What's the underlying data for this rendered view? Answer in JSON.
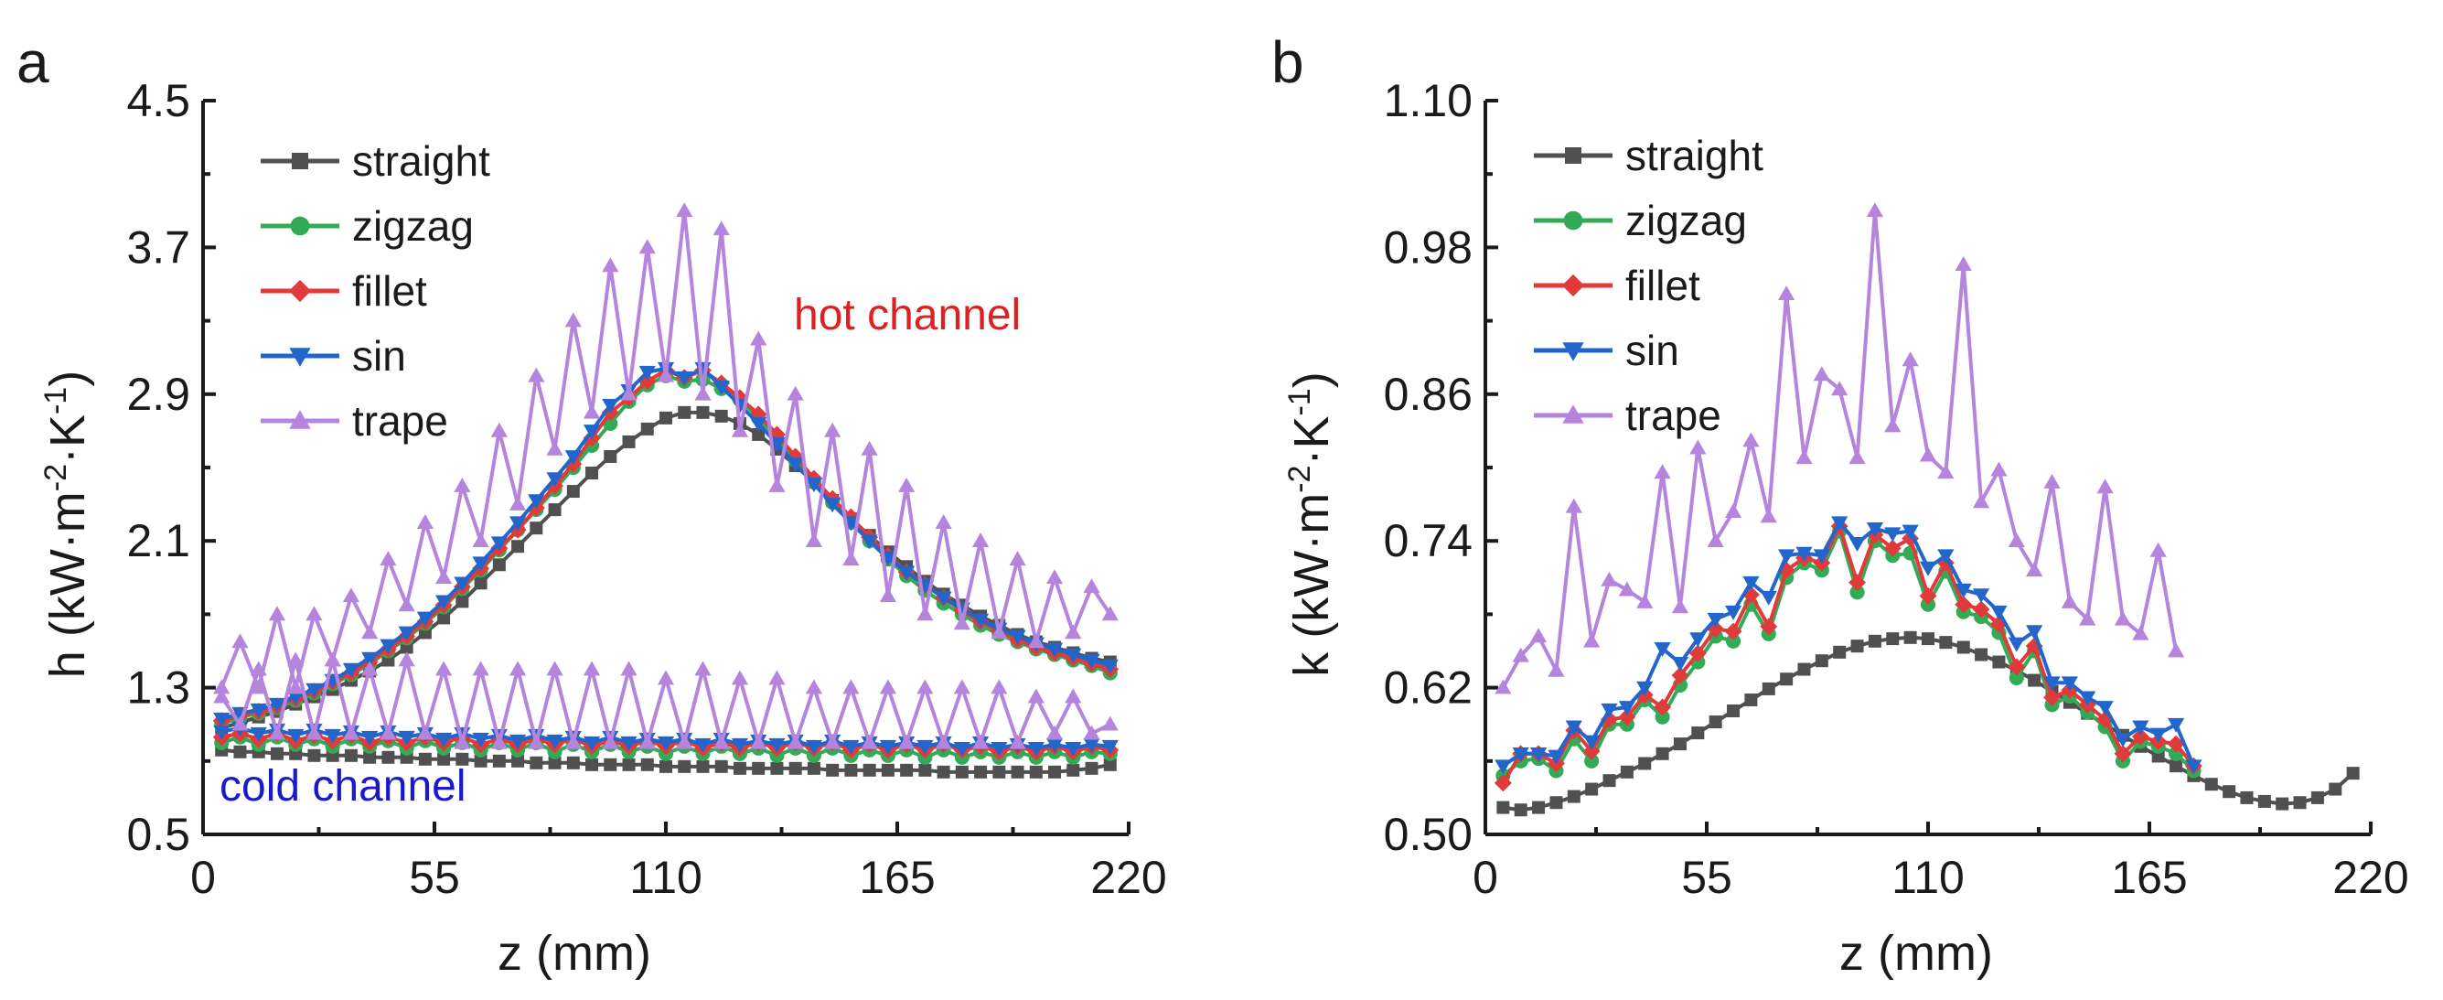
{
  "chart_data": [
    {
      "panel": "a",
      "type": "line",
      "xlabel": "z (mm)",
      "ylabel": "h (kW·m⁻²·K⁻¹)",
      "ylabel_parts": {
        "base": "h (kW·m",
        "e1": "-2",
        "mid": "·K",
        "e2": "-1",
        "end": ")"
      },
      "xlim": [
        0,
        220
      ],
      "ylim": [
        0.5,
        4.5
      ],
      "xticks": [
        0,
        55,
        110,
        165,
        220
      ],
      "yticks": [
        0.5,
        1.3,
        2.1,
        2.9,
        3.7,
        4.5
      ],
      "ytick_labels": [
        "0.5",
        "1.3",
        "2.1",
        "2.9",
        "3.7",
        "4.5"
      ],
      "legend": [
        "straight",
        "zigzag",
        "fillet",
        "sin",
        "trape"
      ],
      "legend_position": "top-left",
      "annotations": [
        {
          "text": "hot channel",
          "color": "#e02020"
        },
        {
          "text": "cold channel",
          "color": "#1a1acc"
        }
      ],
      "x_start": 4.4,
      "x_step": 4.4,
      "series": [
        {
          "name": "straight",
          "group": "hot",
          "color": "#505050",
          "marker": "square",
          "values": [
            1.08,
            1.11,
            1.14,
            1.17,
            1.21,
            1.25,
            1.29,
            1.34,
            1.39,
            1.45,
            1.52,
            1.6,
            1.68,
            1.77,
            1.87,
            1.97,
            2.07,
            2.17,
            2.27,
            2.37,
            2.47,
            2.56,
            2.64,
            2.71,
            2.77,
            2.8,
            2.8,
            2.78,
            2.74,
            2.68,
            2.6,
            2.51,
            2.42,
            2.32,
            2.22,
            2.13,
            2.04,
            1.96,
            1.88,
            1.81,
            1.75,
            1.69,
            1.64,
            1.59,
            1.55,
            1.52,
            1.49,
            1.46,
            1.44
          ]
        },
        {
          "name": "zigzag",
          "group": "hot",
          "color": "#33aa55",
          "marker": "circle",
          "values": [
            1.1,
            1.14,
            1.16,
            1.19,
            1.23,
            1.27,
            1.32,
            1.37,
            1.43,
            1.5,
            1.57,
            1.65,
            1.74,
            1.84,
            1.94,
            2.05,
            2.16,
            2.27,
            2.38,
            2.5,
            2.62,
            2.74,
            2.86,
            2.95,
            3.0,
            2.97,
            2.98,
            2.93,
            2.87,
            2.77,
            2.66,
            2.54,
            2.42,
            2.31,
            2.2,
            2.1,
            2.0,
            1.91,
            1.83,
            1.76,
            1.7,
            1.64,
            1.59,
            1.55,
            1.51,
            1.48,
            1.45,
            1.42,
            1.38
          ]
        },
        {
          "name": "fillet",
          "group": "hot",
          "color": "#e03a3a",
          "marker": "diamond",
          "values": [
            1.12,
            1.15,
            1.17,
            1.2,
            1.24,
            1.28,
            1.33,
            1.38,
            1.44,
            1.51,
            1.58,
            1.66,
            1.75,
            1.85,
            1.95,
            2.06,
            2.16,
            2.28,
            2.4,
            2.52,
            2.66,
            2.8,
            2.88,
            2.97,
            3.03,
            2.99,
            3.03,
            2.96,
            2.88,
            2.79,
            2.68,
            2.56,
            2.44,
            2.33,
            2.23,
            2.12,
            2.02,
            1.93,
            1.86,
            1.79,
            1.72,
            1.66,
            1.61,
            1.56,
            1.52,
            1.49,
            1.46,
            1.43,
            1.4
          ]
        },
        {
          "name": "sin",
          "group": "hot",
          "color": "#2266cc",
          "marker": "triangle-down",
          "values": [
            1.13,
            1.16,
            1.18,
            1.21,
            1.25,
            1.29,
            1.34,
            1.4,
            1.46,
            1.53,
            1.6,
            1.68,
            1.77,
            1.87,
            1.98,
            2.09,
            2.2,
            2.32,
            2.44,
            2.56,
            2.7,
            2.84,
            2.92,
            3.02,
            3.04,
            2.99,
            3.04,
            2.94,
            2.84,
            2.74,
            2.63,
            2.52,
            2.41,
            2.3,
            2.2,
            2.1,
            2.01,
            1.93,
            1.86,
            1.79,
            1.73,
            1.67,
            1.62,
            1.58,
            1.54,
            1.51,
            1.48,
            1.45,
            1.42
          ]
        },
        {
          "name": "trape",
          "group": "hot",
          "color": "#b584dd",
          "marker": "triangle-up",
          "values": [
            1.3,
            1.55,
            1.3,
            1.7,
            1.3,
            1.7,
            1.45,
            1.8,
            1.6,
            2.0,
            1.75,
            2.2,
            1.9,
            2.4,
            2.1,
            2.7,
            2.3,
            3.0,
            2.6,
            3.3,
            2.8,
            3.6,
            2.9,
            3.7,
            3.0,
            3.9,
            2.9,
            3.8,
            2.7,
            3.2,
            2.4,
            2.9,
            2.1,
            2.7,
            2.0,
            2.6,
            1.8,
            2.4,
            1.7,
            2.2,
            1.65,
            2.1,
            1.6,
            2.0,
            1.55,
            1.9,
            1.6,
            1.85,
            1.7
          ]
        },
        {
          "name": "straight",
          "group": "cold",
          "color": "#505050",
          "marker": "square",
          "values": [
            0.96,
            0.95,
            0.95,
            0.94,
            0.94,
            0.93,
            0.93,
            0.93,
            0.92,
            0.92,
            0.92,
            0.91,
            0.91,
            0.91,
            0.9,
            0.9,
            0.9,
            0.89,
            0.89,
            0.89,
            0.88,
            0.88,
            0.88,
            0.88,
            0.87,
            0.87,
            0.87,
            0.87,
            0.86,
            0.86,
            0.86,
            0.86,
            0.86,
            0.85,
            0.85,
            0.85,
            0.85,
            0.85,
            0.85,
            0.84,
            0.84,
            0.84,
            0.84,
            0.84,
            0.84,
            0.84,
            0.85,
            0.86,
            0.88
          ]
        },
        {
          "name": "zigzag",
          "group": "cold",
          "color": "#33aa55",
          "marker": "circle",
          "values": [
            1.0,
            1.03,
            0.99,
            1.03,
            0.99,
            1.02,
            0.98,
            1.02,
            0.98,
            1.01,
            0.97,
            1.01,
            0.97,
            1.0,
            0.96,
            1.0,
            0.96,
            1.0,
            0.95,
            0.99,
            0.95,
            0.99,
            0.95,
            0.98,
            0.94,
            0.98,
            0.94,
            0.98,
            0.94,
            0.97,
            0.93,
            0.97,
            0.93,
            0.97,
            0.93,
            0.96,
            0.93,
            0.96,
            0.92,
            0.96,
            0.92,
            0.95,
            0.92,
            0.95,
            0.92,
            0.95,
            0.92,
            0.95,
            0.94
          ]
        },
        {
          "name": "fillet",
          "group": "cold",
          "color": "#e03a3a",
          "marker": "diamond",
          "values": [
            1.03,
            1.05,
            1.02,
            1.05,
            1.01,
            1.04,
            1.01,
            1.04,
            1.0,
            1.03,
            1.0,
            1.03,
            1.0,
            1.03,
            0.99,
            1.02,
            0.99,
            1.02,
            0.99,
            1.02,
            0.98,
            1.01,
            0.98,
            1.01,
            0.98,
            1.01,
            0.97,
            1.0,
            0.97,
            1.0,
            0.97,
            1.0,
            0.97,
            1.0,
            0.96,
            0.99,
            0.96,
            0.99,
            0.96,
            0.99,
            0.96,
            0.98,
            0.95,
            0.98,
            0.95,
            0.98,
            0.95,
            0.98,
            0.96
          ]
        },
        {
          "name": "sin",
          "group": "cold",
          "color": "#2266cc",
          "marker": "triangle-down",
          "values": [
            1.06,
            1.08,
            1.05,
            1.07,
            1.04,
            1.07,
            1.04,
            1.06,
            1.03,
            1.06,
            1.03,
            1.05,
            1.02,
            1.05,
            1.02,
            1.04,
            1.01,
            1.04,
            1.01,
            1.03,
            1.0,
            1.03,
            1.0,
            1.02,
            1.0,
            1.02,
            0.99,
            1.02,
            0.99,
            1.01,
            0.99,
            1.01,
            0.98,
            1.01,
            0.98,
            1.0,
            0.98,
            1.0,
            0.98,
            1.0,
            0.97,
            1.0,
            0.97,
            0.99,
            0.97,
            0.99,
            0.97,
            0.99,
            0.98
          ]
        },
        {
          "name": "trape",
          "group": "cold",
          "color": "#b584dd",
          "marker": "triangle-up",
          "values": [
            1.25,
            1.1,
            1.4,
            1.05,
            1.45,
            1.05,
            1.45,
            1.05,
            1.4,
            1.05,
            1.45,
            1.05,
            1.4,
            1.0,
            1.4,
            1.0,
            1.4,
            1.0,
            1.4,
            1.0,
            1.4,
            1.0,
            1.4,
            1.0,
            1.35,
            1.0,
            1.4,
            1.0,
            1.35,
            1.0,
            1.35,
            1.0,
            1.3,
            1.0,
            1.3,
            1.0,
            1.3,
            1.0,
            1.3,
            1.0,
            1.3,
            1.0,
            1.3,
            1.0,
            1.25,
            1.05,
            1.25,
            1.05,
            1.1
          ]
        }
      ]
    },
    {
      "panel": "b",
      "type": "line",
      "xlabel": "z (mm)",
      "ylabel": "k (kW·m⁻²·K⁻¹)",
      "ylabel_parts": {
        "base": "k (kW·m",
        "e1": "-2",
        "mid": "·K",
        "e2": "-1",
        "end": ")"
      },
      "xlim": [
        0,
        220
      ],
      "ylim": [
        0.5,
        1.1
      ],
      "xticks": [
        0,
        55,
        110,
        165,
        220
      ],
      "yticks": [
        0.5,
        0.62,
        0.74,
        0.86,
        0.98,
        1.1
      ],
      "ytick_labels": [
        "0.50",
        "0.62",
        "0.74",
        "0.86",
        "0.98",
        "1.10"
      ],
      "legend": [
        "straight",
        "zigzag",
        "fillet",
        "sin",
        "trape"
      ],
      "legend_position": "top-left",
      "annotations": [],
      "x_start": 4.4,
      "x_step": 4.4,
      "series": [
        {
          "name": "straight",
          "group": "all",
          "color": "#505050",
          "marker": "square",
          "values": [
            0.522,
            0.52,
            0.522,
            0.526,
            0.531,
            0.537,
            0.544,
            0.551,
            0.558,
            0.566,
            0.574,
            0.583,
            0.592,
            0.601,
            0.61,
            0.619,
            0.627,
            0.635,
            0.642,
            0.649,
            0.654,
            0.658,
            0.66,
            0.661,
            0.66,
            0.657,
            0.653,
            0.647,
            0.641,
            0.634,
            0.626,
            0.617,
            0.608,
            0.599,
            0.59,
            0.581,
            0.572,
            0.564,
            0.556,
            0.548,
            0.541,
            0.535,
            0.53,
            0.527,
            0.525,
            0.526,
            0.53,
            0.537,
            0.55
          ]
        },
        {
          "name": "zigzag",
          "group": "all",
          "color": "#33aa55",
          "marker": "circle",
          "values": [
            0.548,
            0.56,
            0.562,
            0.552,
            0.578,
            0.56,
            0.59,
            0.59,
            0.61,
            0.596,
            0.622,
            0.641,
            0.662,
            0.658,
            0.688,
            0.664,
            0.71,
            0.722,
            0.716,
            0.748,
            0.698,
            0.74,
            0.728,
            0.73,
            0.688,
            0.715,
            0.682,
            0.678,
            0.665,
            0.628,
            0.65,
            0.606,
            0.613,
            0.6,
            0.588,
            0.56,
            0.576,
            0.572,
            0.566,
            0.552
          ]
        },
        {
          "name": "fillet",
          "group": "all",
          "color": "#e03a3a",
          "marker": "diamond",
          "values": [
            0.542,
            0.566,
            0.566,
            0.558,
            0.585,
            0.568,
            0.594,
            0.596,
            0.614,
            0.604,
            0.63,
            0.648,
            0.668,
            0.666,
            0.696,
            0.67,
            0.716,
            0.726,
            0.722,
            0.752,
            0.706,
            0.745,
            0.734,
            0.742,
            0.695,
            0.722,
            0.688,
            0.684,
            0.672,
            0.637,
            0.654,
            0.612,
            0.618,
            0.606,
            0.594,
            0.566,
            0.58,
            0.576,
            0.574,
            0.556
          ]
        },
        {
          "name": "sin",
          "group": "all",
          "color": "#2266cc",
          "marker": "triangle-down",
          "values": [
            0.556,
            0.566,
            0.566,
            0.564,
            0.588,
            0.576,
            0.602,
            0.604,
            0.62,
            0.652,
            0.64,
            0.66,
            0.676,
            0.682,
            0.706,
            0.694,
            0.728,
            0.73,
            0.728,
            0.755,
            0.738,
            0.75,
            0.746,
            0.748,
            0.718,
            0.728,
            0.7,
            0.696,
            0.682,
            0.656,
            0.666,
            0.624,
            0.624,
            0.612,
            0.604,
            0.578,
            0.588,
            0.582,
            0.59,
            0.556
          ]
        },
        {
          "name": "trape",
          "group": "all",
          "color": "#b584dd",
          "marker": "triangle-up",
          "values": [
            0.62,
            0.646,
            0.662,
            0.634,
            0.768,
            0.658,
            0.708,
            0.7,
            0.69,
            0.796,
            0.686,
            0.816,
            0.74,
            0.764,
            0.822,
            0.76,
            0.942,
            0.808,
            0.876,
            0.864,
            0.808,
            1.01,
            0.834,
            0.888,
            0.81,
            0.796,
            0.966,
            0.772,
            0.798,
            0.74,
            0.716,
            0.788,
            0.69,
            0.676,
            0.784,
            0.676,
            0.664,
            0.732,
            0.65
          ]
        }
      ]
    }
  ]
}
